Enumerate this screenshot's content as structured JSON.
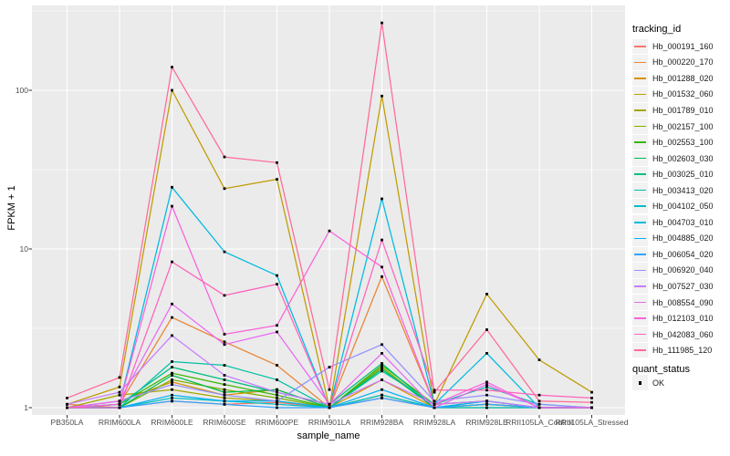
{
  "chart_data": {
    "type": "line",
    "title": "",
    "xlabel": "sample_name",
    "ylabel": "FPKM + 1",
    "y_scale": "log10",
    "y_ticks": [
      100,
      10,
      1
    ],
    "y_tick_labels": [
      "100",
      "10",
      "1"
    ],
    "y_minor_breaks": [
      3.1623,
      31.623,
      316.23
    ],
    "ylim": [
      0.95,
      330
    ],
    "grid": true,
    "legend_position": "right",
    "panel_background": "#EBEBEB",
    "gridline_color": "#FFFFFF",
    "point_color": "#000000",
    "categories": [
      "PB350LA",
      "RRIM600LA",
      "RRIM600LE",
      "RRIM600SE",
      "RRIM600PE",
      "RRIM901LA",
      "RRIM928BA",
      "RRIM928LA",
      "RRIM928LE",
      "RRII105LA_Control",
      "RRII105LA_Stressed"
    ],
    "series": [
      {
        "name": "Hb_000191_160",
        "color": "#F8766D",
        "values": [
          1.05,
          1.0,
          1.1,
          1.05,
          1.08,
          1.0,
          1.15,
          1.0,
          1.05,
          1.0,
          1.0
        ]
      },
      {
        "name": "Hb_000220_170",
        "color": "#EA8331",
        "values": [
          1.0,
          1.05,
          3.7,
          2.6,
          1.85,
          1.0,
          6.7,
          1.05,
          1.1,
          1.0,
          1.0
        ]
      },
      {
        "name": "Hb_001288_020",
        "color": "#D89000",
        "values": [
          1.0,
          1.1,
          1.45,
          1.2,
          1.3,
          1.0,
          1.5,
          1.0,
          1.05,
          1.0,
          1.0
        ]
      },
      {
        "name": "Hb_001532_060",
        "color": "#C09B00",
        "values": [
          1.05,
          1.35,
          100,
          24,
          27.5,
          1.0,
          92,
          1.05,
          5.2,
          2.0,
          1.25
        ]
      },
      {
        "name": "Hb_001789_010",
        "color": "#A3A500",
        "values": [
          1.0,
          1.2,
          1.3,
          1.15,
          1.1,
          1.0,
          1.2,
          1.0,
          1.0,
          1.0,
          1.0
        ]
      },
      {
        "name": "Hb_002157_100",
        "color": "#7CAE00",
        "values": [
          1.0,
          1.0,
          1.5,
          1.3,
          1.15,
          1.0,
          1.8,
          1.0,
          1.05,
          1.0,
          1.0
        ]
      },
      {
        "name": "Hb_002553_100",
        "color": "#39B600",
        "values": [
          1.0,
          1.05,
          1.65,
          1.4,
          1.2,
          1.0,
          1.85,
          1.05,
          1.1,
          1.0,
          1.0
        ]
      },
      {
        "name": "Hb_002603_030",
        "color": "#00BB4E",
        "values": [
          1.0,
          1.0,
          1.6,
          1.25,
          1.3,
          1.0,
          1.75,
          1.0,
          1.05,
          1.0,
          1.0
        ]
      },
      {
        "name": "Hb_003025_010",
        "color": "#00BF7D",
        "values": [
          1.0,
          1.05,
          1.8,
          1.5,
          1.25,
          1.05,
          1.9,
          1.0,
          1.1,
          1.0,
          1.0
        ]
      },
      {
        "name": "Hb_003413_020",
        "color": "#00C1A3",
        "values": [
          1.0,
          1.0,
          1.95,
          1.85,
          1.5,
          1.0,
          1.7,
          1.05,
          1.35,
          1.05,
          1.0
        ]
      },
      {
        "name": "Hb_004102_050",
        "color": "#00BFC4",
        "values": [
          1.0,
          1.0,
          1.15,
          1.1,
          1.05,
          1.0,
          1.2,
          1.0,
          1.0,
          1.0,
          1.0
        ]
      },
      {
        "name": "Hb_004703_010",
        "color": "#00BAE0",
        "values": [
          1.0,
          1.05,
          24.5,
          9.6,
          6.8,
          1.0,
          20.7,
          1.05,
          2.2,
          1.0,
          1.0
        ]
      },
      {
        "name": "Hb_004885_020",
        "color": "#00B0F6",
        "values": [
          1.0,
          1.0,
          1.2,
          1.1,
          1.1,
          1.0,
          1.3,
          1.0,
          1.1,
          1.0,
          1.0
        ]
      },
      {
        "name": "Hb_006054_020",
        "color": "#35A2FF",
        "values": [
          1.0,
          1.0,
          1.1,
          1.05,
          1.0,
          1.0,
          1.15,
          1.0,
          1.05,
          1.0,
          1.0
        ]
      },
      {
        "name": "Hb_006920_040",
        "color": "#9590FF",
        "values": [
          1.0,
          1.1,
          1.4,
          1.2,
          1.1,
          1.8,
          2.5,
          1.1,
          1.2,
          1.05,
          1.0
        ]
      },
      {
        "name": "Hb_007527_030",
        "color": "#C77CFF",
        "values": [
          1.05,
          1.25,
          2.85,
          1.6,
          1.25,
          1.05,
          1.5,
          1.05,
          1.1,
          1.0,
          1.0
        ]
      },
      {
        "name": "Hb_008554_090",
        "color": "#E76BF3",
        "values": [
          1.0,
          1.1,
          4.5,
          2.5,
          3.0,
          1.05,
          2.2,
          1.0,
          1.4,
          1.0,
          1.0
        ]
      },
      {
        "name": "Hb_012103_010",
        "color": "#FA62DB",
        "values": [
          1.0,
          1.05,
          18.6,
          2.9,
          3.3,
          13.0,
          7.7,
          1.05,
          1.45,
          1.0,
          1.0
        ]
      },
      {
        "name": "Hb_042083_060",
        "color": "#FF62BC",
        "values": [
          1.0,
          1.0,
          8.3,
          5.1,
          6.0,
          1.0,
          11.4,
          1.29,
          1.29,
          1.2,
          1.15
        ]
      },
      {
        "name": "Hb_111985_120",
        "color": "#FF6A98",
        "values": [
          1.15,
          1.55,
          140,
          38,
          35,
          1.3,
          266,
          1.25,
          3.1,
          1.1,
          1.08
        ]
      }
    ],
    "legend": {
      "color_title": "tracking_id",
      "shape_title": "quant_status",
      "shape_items": [
        {
          "label": "OK"
        }
      ]
    }
  }
}
